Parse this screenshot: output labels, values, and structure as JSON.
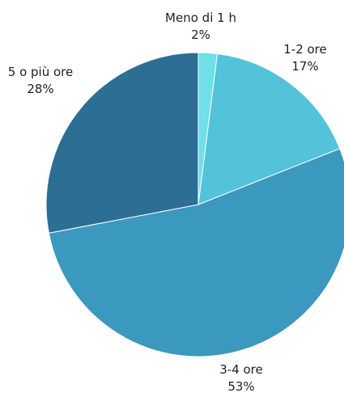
{
  "chart_data": {
    "type": "pie",
    "start_angle_deg": 0,
    "direction": "clockwise",
    "slices": [
      {
        "label": "Meno di 1 h",
        "value": 2,
        "value_label": "2%",
        "color": "#6fdfe8"
      },
      {
        "label": "1-2 ore",
        "value": 17,
        "value_label": "17%",
        "color": "#52c3d9"
      },
      {
        "label": "3-4 ore",
        "value": 53,
        "value_label": "53%",
        "color": "#3b98be"
      },
      {
        "label": "5 o più ore",
        "value": 28,
        "value_label": "28%",
        "color": "#2d6f94"
      }
    ]
  }
}
